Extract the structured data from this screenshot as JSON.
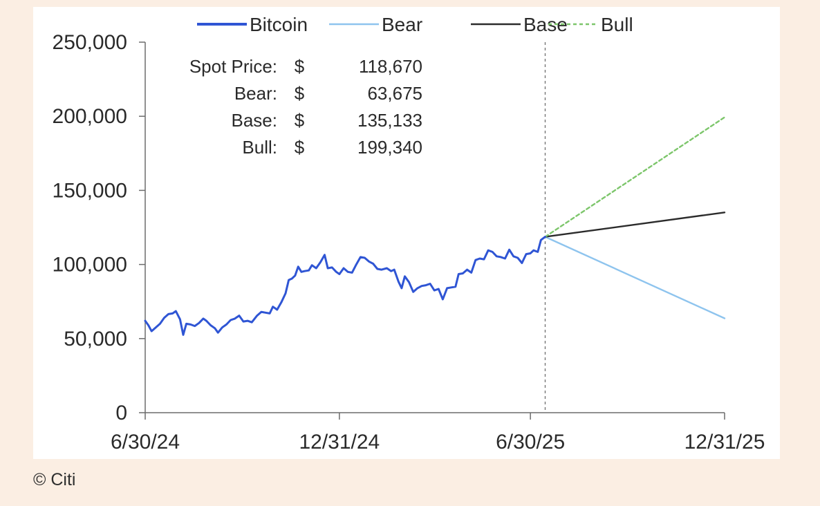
{
  "chart_data": {
    "type": "line",
    "title": "",
    "xlabel": "",
    "ylabel": "",
    "x_range": [
      "2024-06-30",
      "2025-12-31"
    ],
    "ylim": [
      0,
      250000
    ],
    "y_ticks": [
      0,
      50000,
      100000,
      150000,
      200000,
      250000
    ],
    "y_tick_labels": [
      "0",
      "50,000",
      "100,000",
      "150,000",
      "200,000",
      "250,000"
    ],
    "x_ticks": [
      "2024-06-30",
      "2024-12-31",
      "2025-06-30",
      "2025-12-31"
    ],
    "x_tick_labels": [
      "6/30/24",
      "12/31/24",
      "6/30/25",
      "12/31/25"
    ],
    "grid": false,
    "legend_position": "top",
    "forecast_start": "2025-07-14",
    "series": [
      {
        "name": "Bitcoin",
        "color": "#2f55d4",
        "style": "solid",
        "points": [
          [
            "2024-06-30",
            62000
          ],
          [
            "2024-07-03",
            59000
          ],
          [
            "2024-07-06",
            55000
          ],
          [
            "2024-07-10",
            57500
          ],
          [
            "2024-07-14",
            60000
          ],
          [
            "2024-07-18",
            64000
          ],
          [
            "2024-07-22",
            66500
          ],
          [
            "2024-07-26",
            67000
          ],
          [
            "2024-07-29",
            68500
          ],
          [
            "2024-08-02",
            63000
          ],
          [
            "2024-08-05",
            52500
          ],
          [
            "2024-08-08",
            60000
          ],
          [
            "2024-08-12",
            59500
          ],
          [
            "2024-08-16",
            58500
          ],
          [
            "2024-08-20",
            60500
          ],
          [
            "2024-08-24",
            63500
          ],
          [
            "2024-08-27",
            62000
          ],
          [
            "2024-08-31",
            59000
          ],
          [
            "2024-09-04",
            57000
          ],
          [
            "2024-09-07",
            54000
          ],
          [
            "2024-09-11",
            57500
          ],
          [
            "2024-09-15",
            59500
          ],
          [
            "2024-09-19",
            62500
          ],
          [
            "2024-09-23",
            63500
          ],
          [
            "2024-09-27",
            65500
          ],
          [
            "2024-10-01",
            61500
          ],
          [
            "2024-10-05",
            62000
          ],
          [
            "2024-10-09",
            61000
          ],
          [
            "2024-10-14",
            65500
          ],
          [
            "2024-10-18",
            68000
          ],
          [
            "2024-10-22",
            67500
          ],
          [
            "2024-10-26",
            67000
          ],
          [
            "2024-10-29",
            71500
          ],
          [
            "2024-11-02",
            69500
          ],
          [
            "2024-11-06",
            74500
          ],
          [
            "2024-11-10",
            80500
          ],
          [
            "2024-11-13",
            89500
          ],
          [
            "2024-11-16",
            90500
          ],
          [
            "2024-11-19",
            92500
          ],
          [
            "2024-11-22",
            98500
          ],
          [
            "2024-11-25",
            95000
          ],
          [
            "2024-11-28",
            95500
          ],
          [
            "2024-12-02",
            96000
          ],
          [
            "2024-12-05",
            99500
          ],
          [
            "2024-12-09",
            97500
          ],
          [
            "2024-12-13",
            101500
          ],
          [
            "2024-12-17",
            106500
          ],
          [
            "2024-12-20",
            97500
          ],
          [
            "2024-12-24",
            98000
          ],
          [
            "2024-12-28",
            95000
          ],
          [
            "2024-12-31",
            93500
          ],
          [
            "2025-01-04",
            97500
          ],
          [
            "2025-01-08",
            95000
          ],
          [
            "2025-01-12",
            94500
          ],
          [
            "2025-01-16",
            100000
          ],
          [
            "2025-01-20",
            105000
          ],
          [
            "2025-01-24",
            104500
          ],
          [
            "2025-01-28",
            102000
          ],
          [
            "2025-02-01",
            100500
          ],
          [
            "2025-02-05",
            97000
          ],
          [
            "2025-02-09",
            96500
          ],
          [
            "2025-02-14",
            97500
          ],
          [
            "2025-02-18",
            95500
          ],
          [
            "2025-02-21",
            96500
          ],
          [
            "2025-02-25",
            88500
          ],
          [
            "2025-02-28",
            84000
          ],
          [
            "2025-03-03",
            92000
          ],
          [
            "2025-03-07",
            88000
          ],
          [
            "2025-03-11",
            81500
          ],
          [
            "2025-03-15",
            84000
          ],
          [
            "2025-03-19",
            85500
          ],
          [
            "2025-03-23",
            86000
          ],
          [
            "2025-03-27",
            87000
          ],
          [
            "2025-03-31",
            82500
          ],
          [
            "2025-04-04",
            83500
          ],
          [
            "2025-04-08",
            76500
          ],
          [
            "2025-04-12",
            84000
          ],
          [
            "2025-04-16",
            84500
          ],
          [
            "2025-04-20",
            85000
          ],
          [
            "2025-04-23",
            93500
          ],
          [
            "2025-04-27",
            94000
          ],
          [
            "2025-05-01",
            96500
          ],
          [
            "2025-05-05",
            94500
          ],
          [
            "2025-05-09",
            103000
          ],
          [
            "2025-05-13",
            104000
          ],
          [
            "2025-05-17",
            103500
          ],
          [
            "2025-05-21",
            109500
          ],
          [
            "2025-05-25",
            108500
          ],
          [
            "2025-05-29",
            105500
          ],
          [
            "2025-06-02",
            105000
          ],
          [
            "2025-06-06",
            104000
          ],
          [
            "2025-06-10",
            110000
          ],
          [
            "2025-06-14",
            105500
          ],
          [
            "2025-06-18",
            104500
          ],
          [
            "2025-06-22",
            101000
          ],
          [
            "2025-06-26",
            107000
          ],
          [
            "2025-06-30",
            107500
          ],
          [
            "2025-07-03",
            109500
          ],
          [
            "2025-07-07",
            108500
          ],
          [
            "2025-07-10",
            116500
          ],
          [
            "2025-07-14",
            118670
          ]
        ]
      },
      {
        "name": "Bear",
        "color": "#8ec4ee",
        "style": "solid",
        "points": [
          [
            "2025-07-14",
            118670
          ],
          [
            "2025-12-31",
            63675
          ]
        ]
      },
      {
        "name": "Base",
        "color": "#2b2b2b",
        "style": "solid",
        "points": [
          [
            "2025-07-14",
            118670
          ],
          [
            "2025-12-31",
            135133
          ]
        ]
      },
      {
        "name": "Bull",
        "color": "#7dc66b",
        "style": "dashed",
        "points": [
          [
            "2025-07-14",
            118670
          ],
          [
            "2025-12-31",
            199340
          ]
        ]
      }
    ],
    "annotations": [
      {
        "label": "Spot Price:",
        "currency": "$",
        "value": "118,670"
      },
      {
        "label": "Bear:",
        "currency": "$",
        "value": "63,675"
      },
      {
        "label": "Base:",
        "currency": "$",
        "value": "135,133"
      },
      {
        "label": "Bull:",
        "currency": "$",
        "value": "199,340"
      }
    ]
  },
  "credit": "© Citi"
}
